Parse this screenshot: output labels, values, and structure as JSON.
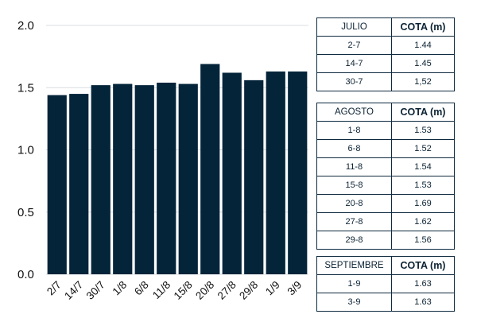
{
  "chart_data": {
    "type": "bar",
    "categories": [
      "2/7",
      "14/7",
      "30/7",
      "1/8",
      "6/8",
      "11/8",
      "15/8",
      "20/8",
      "27/8",
      "29/8",
      "1/9",
      "3/9"
    ],
    "values": [
      1.44,
      1.45,
      1.52,
      1.53,
      1.52,
      1.54,
      1.53,
      1.69,
      1.62,
      1.56,
      1.63,
      1.63
    ],
    "ylim": [
      0,
      2.0
    ],
    "yticks": [
      "0.0",
      "0.5",
      "1.0",
      "1.5",
      "2.0"
    ],
    "ytick_values": [
      0,
      0.5,
      1.0,
      1.5,
      2.0
    ],
    "grid": true,
    "bar_color": "#04243a",
    "grid_color": "#d9dde0"
  },
  "tables": {
    "julio": {
      "month": "JULIO",
      "header": "COTA (m)",
      "rows": [
        {
          "date": "2-7",
          "cota": "1.44"
        },
        {
          "date": "14-7",
          "cota": "1.45"
        },
        {
          "date": "30-7",
          "cota": "1,52"
        }
      ]
    },
    "agosto": {
      "month": "AGOSTO",
      "header": "COTA (m)",
      "rows": [
        {
          "date": "1-8",
          "cota": "1.53"
        },
        {
          "date": "6-8",
          "cota": "1.52"
        },
        {
          "date": "11-8",
          "cota": "1.54"
        },
        {
          "date": "15-8",
          "cota": "1.53"
        },
        {
          "date": "20-8",
          "cota": "1.69"
        },
        {
          "date": "27-8",
          "cota": "1.62"
        },
        {
          "date": "29-8",
          "cota": "1.56"
        }
      ]
    },
    "septiembre": {
      "month": "SEPTIEMBRE",
      "header": "COTA (m)",
      "rows": [
        {
          "date": "1-9",
          "cota": "1.63"
        },
        {
          "date": "3-9",
          "cota": "1.63"
        }
      ]
    }
  }
}
